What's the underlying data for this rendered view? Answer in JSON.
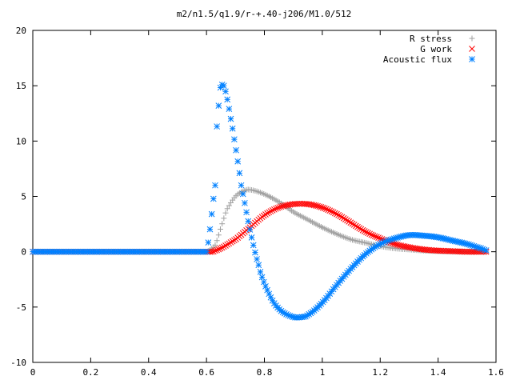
{
  "chart_data": {
    "type": "scatter",
    "title": "m2/n1.5/q1.9/r-+.40-j206/M1.0/512",
    "xlim": [
      0,
      1.6
    ],
    "ylim": [
      -10,
      20
    ],
    "xticks": [
      "0",
      "0.2",
      "0.4",
      "0.6",
      "0.8",
      "1",
      "1.2",
      "1.4",
      "1.6"
    ],
    "yticks": [
      "-10",
      "-5",
      "0",
      "5",
      "10",
      "15",
      "20"
    ],
    "grid": false,
    "legend_position": "top-right",
    "colors": {
      "r_stress": "#a0a0a0",
      "g_work": "#ff0000",
      "acoustic_flux": "#0080ff"
    },
    "series": [
      {
        "name": "R stress",
        "marker": "plus",
        "x": [
          0.0,
          0.1,
          0.2,
          0.3,
          0.4,
          0.5,
          0.6,
          0.63,
          0.65,
          0.67,
          0.7,
          0.73,
          0.75,
          0.8,
          0.85,
          0.9,
          0.95,
          1.0,
          1.05,
          1.1,
          1.15,
          1.2,
          1.25,
          1.3,
          1.35,
          1.4,
          1.45,
          1.5,
          1.57
        ],
        "y": [
          0,
          0,
          0,
          0,
          0,
          0,
          0,
          0.6,
          2.2,
          3.8,
          5.0,
          5.5,
          5.6,
          5.2,
          4.5,
          3.6,
          2.9,
          2.2,
          1.6,
          1.1,
          0.8,
          0.5,
          0.3,
          0.2,
          0.1,
          0.05,
          0.02,
          0.0,
          0.0
        ]
      },
      {
        "name": "G work",
        "marker": "cross",
        "x": [
          0.0,
          0.1,
          0.2,
          0.3,
          0.4,
          0.5,
          0.6,
          0.63,
          0.7,
          0.75,
          0.8,
          0.85,
          0.9,
          0.95,
          1.0,
          1.05,
          1.1,
          1.15,
          1.2,
          1.25,
          1.3,
          1.35,
          1.4,
          1.45,
          1.5,
          1.57
        ],
        "y": [
          0,
          0,
          0,
          0,
          0,
          0,
          0,
          0.1,
          1.1,
          2.2,
          3.3,
          4.0,
          4.3,
          4.3,
          4.0,
          3.4,
          2.6,
          1.8,
          1.2,
          0.7,
          0.4,
          0.2,
          0.1,
          0.05,
          0.0,
          0.0
        ]
      },
      {
        "name": "Acoustic flux",
        "marker": "star",
        "x": [
          0.0,
          0.1,
          0.2,
          0.3,
          0.4,
          0.5,
          0.6,
          0.63,
          0.635,
          0.64,
          0.645,
          0.65,
          0.66,
          0.67,
          0.68,
          0.7,
          0.72,
          0.75,
          0.78,
          0.8,
          0.83,
          0.86,
          0.9,
          0.93,
          0.95,
          1.0,
          1.05,
          1.1,
          1.15,
          1.2,
          1.25,
          1.3,
          1.35,
          1.4,
          1.45,
          1.5,
          1.55,
          1.57
        ],
        "y": [
          0,
          0,
          0,
          0,
          0,
          0,
          0,
          6.0,
          10.8,
          12.4,
          14.3,
          15.0,
          15.0,
          14.0,
          12.5,
          9.5,
          6.0,
          2.0,
          -1.2,
          -2.9,
          -4.5,
          -5.4,
          -5.9,
          -5.9,
          -5.7,
          -4.6,
          -3.0,
          -1.5,
          -0.2,
          0.7,
          1.2,
          1.5,
          1.45,
          1.3,
          1.0,
          0.7,
          0.3,
          0.1
        ]
      }
    ]
  }
}
